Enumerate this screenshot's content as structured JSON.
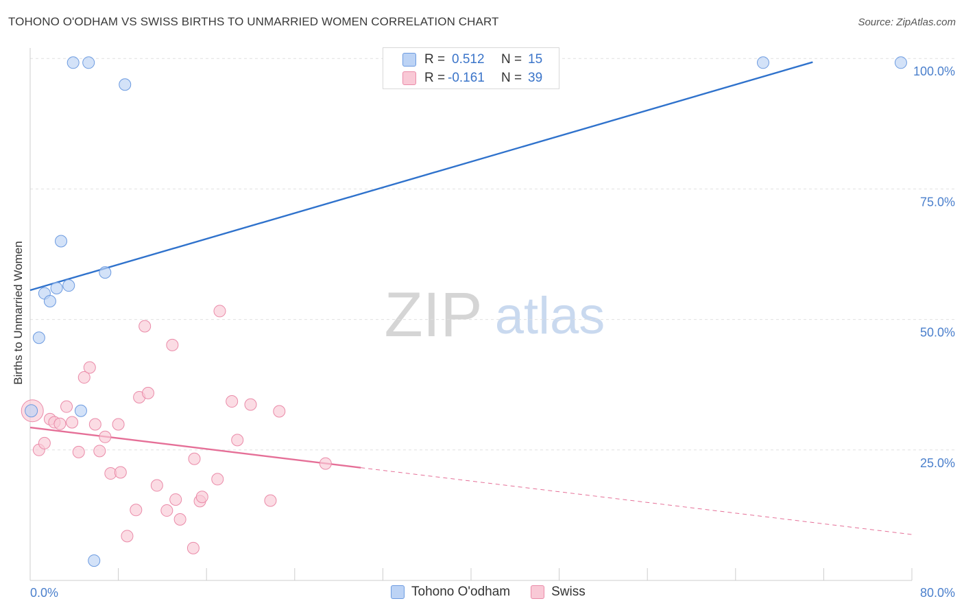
{
  "title": "TOHONO O'ODHAM VS SWISS BIRTHS TO UNMARRIED WOMEN CORRELATION CHART",
  "source": "Source: ZipAtlas.com",
  "watermark": {
    "zip": "ZIP",
    "atlas": "atlas"
  },
  "stats": {
    "rows": [
      {
        "r_label": "R =",
        "r_value": "0.512",
        "n_label": "N =",
        "n_value": "15",
        "color": "#6b9ae0"
      },
      {
        "r_label": "R =",
        "r_value": "-0.161",
        "n_label": "N =",
        "n_value": "39",
        "color": "#ea8aa8"
      }
    ]
  },
  "legend": {
    "items": [
      {
        "label": "Tohono O'odham",
        "color": "#6b9ae0"
      },
      {
        "label": "Swiss",
        "color": "#ea8aa8"
      }
    ]
  },
  "chart_data": {
    "type": "scatter",
    "title": "TOHONO O'ODHAM VS SWISS BIRTHS TO UNMARRIED WOMEN CORRELATION CHART",
    "xlabel": "",
    "ylabel": "Births to Unmarried Women",
    "xlim": [
      0,
      80
    ],
    "ylim": [
      0,
      102
    ],
    "x_tick_labels": [
      "0.0%",
      "80.0%"
    ],
    "y_tick_labels": [
      "25.0%",
      "50.0%",
      "75.0%",
      "100.0%"
    ],
    "y_ticks": [
      25,
      50,
      75,
      100
    ],
    "grid": true,
    "legend_position": "bottom",
    "series": [
      {
        "name": "Tohono O'odham",
        "color": "#6b9ae0",
        "fill": "#bcd3f5",
        "points": [
          {
            "x": 0.1,
            "y": 32.5,
            "r": 9
          },
          {
            "x": 0.8,
            "y": 46.5
          },
          {
            "x": 1.3,
            "y": 55.0
          },
          {
            "x": 1.8,
            "y": 53.5
          },
          {
            "x": 2.4,
            "y": 56.0
          },
          {
            "x": 3.5,
            "y": 56.5
          },
          {
            "x": 2.8,
            "y": 65.0
          },
          {
            "x": 4.6,
            "y": 32.5
          },
          {
            "x": 6.8,
            "y": 59.0
          },
          {
            "x": 3.9,
            "y": 99.2
          },
          {
            "x": 5.3,
            "y": 99.2
          },
          {
            "x": 8.6,
            "y": 95.0
          },
          {
            "x": 5.8,
            "y": 3.8
          },
          {
            "x": 66.5,
            "y": 99.2
          },
          {
            "x": 79.0,
            "y": 99.2
          }
        ],
        "trend": {
          "x": [
            0,
            71
          ],
          "y": [
            55.6,
            99.3
          ]
        }
      },
      {
        "name": "Swiss",
        "color": "#ea8aa8",
        "fill": "#f9c9d6",
        "points": [
          {
            "x": 0.2,
            "y": 32.5,
            "r": 16
          },
          {
            "x": 0.8,
            "y": 25.0
          },
          {
            "x": 1.3,
            "y": 26.3
          },
          {
            "x": 1.8,
            "y": 30.9
          },
          {
            "x": 2.2,
            "y": 30.3
          },
          {
            "x": 2.7,
            "y": 30.0
          },
          {
            "x": 3.3,
            "y": 33.3
          },
          {
            "x": 3.8,
            "y": 30.3
          },
          {
            "x": 4.4,
            "y": 24.6
          },
          {
            "x": 4.9,
            "y": 38.9
          },
          {
            "x": 5.4,
            "y": 40.8
          },
          {
            "x": 5.9,
            "y": 29.9
          },
          {
            "x": 6.3,
            "y": 24.8
          },
          {
            "x": 6.8,
            "y": 27.5
          },
          {
            "x": 7.3,
            "y": 20.5
          },
          {
            "x": 8.0,
            "y": 29.9
          },
          {
            "x": 8.2,
            "y": 20.7
          },
          {
            "x": 8.8,
            "y": 8.5
          },
          {
            "x": 9.6,
            "y": 13.5
          },
          {
            "x": 9.9,
            "y": 35.1
          },
          {
            "x": 10.4,
            "y": 48.7
          },
          {
            "x": 10.7,
            "y": 35.9
          },
          {
            "x": 11.5,
            "y": 18.2
          },
          {
            "x": 12.4,
            "y": 13.4
          },
          {
            "x": 12.9,
            "y": 45.1
          },
          {
            "x": 13.2,
            "y": 15.5
          },
          {
            "x": 13.6,
            "y": 11.7
          },
          {
            "x": 14.8,
            "y": 6.2
          },
          {
            "x": 14.9,
            "y": 23.3
          },
          {
            "x": 15.4,
            "y": 15.2
          },
          {
            "x": 15.6,
            "y": 16.0
          },
          {
            "x": 17.0,
            "y": 19.4
          },
          {
            "x": 18.3,
            "y": 34.3
          },
          {
            "x": 18.8,
            "y": 26.9
          },
          {
            "x": 17.2,
            "y": 51.6
          },
          {
            "x": 20.0,
            "y": 33.7
          },
          {
            "x": 21.8,
            "y": 15.3
          },
          {
            "x": 22.6,
            "y": 32.4
          },
          {
            "x": 26.8,
            "y": 22.4
          }
        ],
        "trend": {
          "x": [
            0,
            30
          ],
          "y": [
            29.3,
            21.6
          ]
        },
        "trend_dashed": {
          "x": [
            30,
            80
          ],
          "y": [
            21.6,
            8.8
          ]
        }
      }
    ]
  }
}
